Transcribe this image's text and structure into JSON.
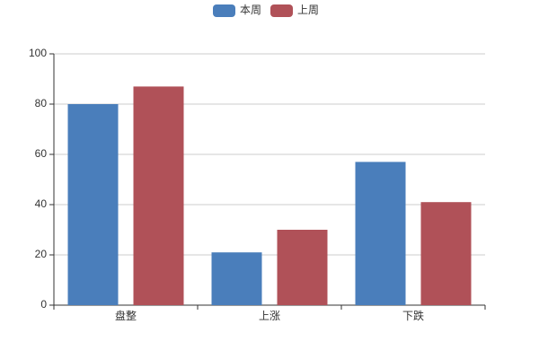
{
  "chart_data": {
    "type": "bar",
    "categories": [
      "盘整",
      "上涨",
      "下跌"
    ],
    "series": [
      {
        "name": "本周",
        "color": "#4a7ebb",
        "values": [
          80,
          21,
          57
        ]
      },
      {
        "name": "上周",
        "color": "#b05158",
        "values": [
          87,
          30,
          41
        ]
      }
    ],
    "ylim": [
      0,
      100
    ],
    "yticks": [
      0,
      20,
      40,
      60,
      80,
      100
    ],
    "grid": true,
    "legend": "top"
  }
}
